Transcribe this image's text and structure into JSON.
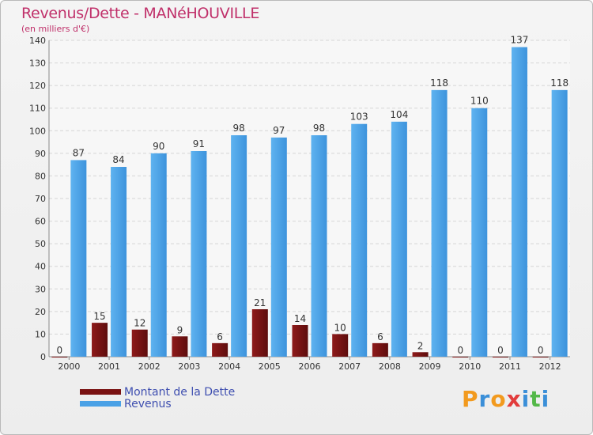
{
  "title": "Revenus/Dette - MANéHOUVILLE",
  "subtitle": "(en milliers d'€)",
  "colors": {
    "title": "#c0306a",
    "dette": "#7a1212",
    "revenus": "#4aa1e6",
    "legend_text": "#3f4fb0"
  },
  "legend": [
    {
      "label": "Montant de la Dette",
      "color": "#7a1212"
    },
    {
      "label": "Revenus",
      "color": "#4aa1e6"
    }
  ],
  "logo": {
    "letters": [
      "P",
      "r",
      "o",
      "x",
      "i",
      "t",
      "i"
    ],
    "colors": [
      "#f29a1e",
      "#3b8fd8",
      "#f29a1e",
      "#e23c3c",
      "#3b8fd8",
      "#54b848",
      "#3b8fd8"
    ]
  },
  "chart_data": {
    "type": "bar",
    "categories": [
      "2000",
      "2001",
      "2002",
      "2003",
      "2004",
      "2005",
      "2006",
      "2007",
      "2008",
      "2009",
      "2010",
      "2011",
      "2012"
    ],
    "series": [
      {
        "name": "Montant de la Dette",
        "values": [
          0,
          15,
          12,
          9,
          6,
          21,
          14,
          10,
          6,
          2,
          0,
          0,
          0
        ]
      },
      {
        "name": "Revenus",
        "values": [
          87,
          84,
          90,
          91,
          98,
          97,
          98,
          103,
          104,
          118,
          110,
          137,
          118
        ]
      }
    ],
    "yticks": [
      0,
      10,
      20,
      30,
      40,
      50,
      60,
      70,
      80,
      90,
      100,
      110,
      120,
      130,
      140
    ],
    "ylim": [
      0,
      140
    ],
    "grid": true,
    "legend_position": "bottom-left"
  }
}
